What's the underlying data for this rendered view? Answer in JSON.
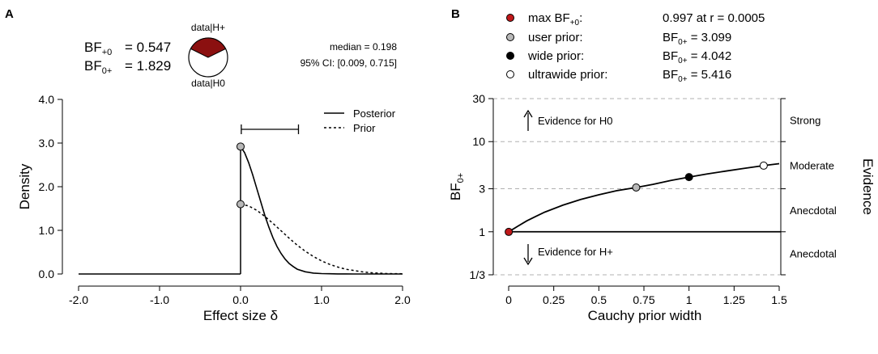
{
  "chart_data": [
    {
      "type": "line",
      "panel_label": "A",
      "xlabel": "Effect size δ",
      "ylabel": "Density",
      "xlim": [
        -2.0,
        2.0
      ],
      "ylim": [
        0.0,
        4.0
      ],
      "x_ticks": [
        "-2.0",
        "-1.0",
        "0.0",
        "1.0",
        "2.0"
      ],
      "y_ticks": [
        "0.0",
        "1.0",
        "2.0",
        "3.0",
        "4.0"
      ],
      "legend": [
        "Posterior",
        "Prior"
      ],
      "bf": {
        "bf_plus0_value": "= 0.547",
        "bf_0plus_value": "= 1.829"
      },
      "pie": {
        "top_label": "data|H+",
        "bottom_label": "data|H0",
        "h_plus_share": 0.354,
        "h_plus_color": "#8b1010"
      },
      "stats": {
        "median": "median = 0.198",
        "ci": "95% CI: [0.009, 0.715]"
      },
      "ci_interval": [
        0.009,
        0.715
      ],
      "points": {
        "posterior_at_zero": 2.92,
        "prior_at_zero": 1.6
      },
      "series": [
        {
          "name": "Posterior",
          "style": "solid",
          "x": [
            0,
            0.05,
            0.1,
            0.15,
            0.2,
            0.25,
            0.3,
            0.35,
            0.4,
            0.45,
            0.5,
            0.55,
            0.6,
            0.65,
            0.7,
            0.8,
            0.9,
            1.0,
            1.1,
            1.2,
            1.3,
            1.4,
            1.5,
            1.6,
            1.8,
            2.0
          ],
          "y": [
            2.92,
            2.78,
            2.55,
            2.27,
            1.96,
            1.65,
            1.34,
            1.07,
            0.83,
            0.63,
            0.47,
            0.34,
            0.24,
            0.17,
            0.11,
            0.05,
            0.02,
            0.01,
            0.005,
            0.002,
            0.001,
            0,
            0,
            0,
            0,
            0
          ]
        },
        {
          "name": "Prior",
          "style": "dotted",
          "x": [
            0,
            0.1,
            0.2,
            0.3,
            0.4,
            0.5,
            0.6,
            0.7,
            0.8,
            0.9,
            1.0,
            1.1,
            1.2,
            1.3,
            1.4,
            1.5,
            1.6,
            1.7,
            1.8,
            2.0
          ],
          "y": [
            1.6,
            1.56,
            1.46,
            1.32,
            1.16,
            0.99,
            0.82,
            0.66,
            0.52,
            0.4,
            0.3,
            0.22,
            0.16,
            0.11,
            0.08,
            0.05,
            0.03,
            0.02,
            0.01,
            0.005
          ]
        }
      ]
    },
    {
      "type": "line",
      "panel_label": "B",
      "xlabel": "Cauchy prior width",
      "ylabel_main": "BF",
      "ylabel_sub": "0+",
      "right_label": "Evidence",
      "xlim": [
        0,
        1.5
      ],
      "y_scale": "log",
      "ylim": [
        0.3333,
        30
      ],
      "x_ticks": [
        {
          "v": 0,
          "t": "0"
        },
        {
          "v": 0.25,
          "t": "0.25"
        },
        {
          "v": 0.5,
          "t": "0.5"
        },
        {
          "v": 0.75,
          "t": "0.75"
        },
        {
          "v": 1.0,
          "t": "1"
        },
        {
          "v": 1.25,
          "t": "1.25"
        },
        {
          "v": 1.5,
          "t": "1.5"
        }
      ],
      "y_ticks": [
        {
          "v": 0.3333,
          "t": "1/3"
        },
        {
          "v": 1,
          "t": "1"
        },
        {
          "v": 3,
          "t": "3"
        },
        {
          "v": 10,
          "t": "10"
        },
        {
          "v": 30,
          "t": "30"
        }
      ],
      "grid_lines": [
        0.3333,
        3,
        10,
        30
      ],
      "evidence_labels": [
        {
          "v": 17.3,
          "t": "Strong"
        },
        {
          "v": 5.48,
          "t": "Moderate"
        },
        {
          "v": 1.73,
          "t": "Anecdotal"
        },
        {
          "v": 0.577,
          "t": "Anecdotal"
        }
      ],
      "arrows": {
        "up_text": "Evidence for H0",
        "down_text": "Evidence for H+"
      },
      "legend": [
        {
          "name": "max BF",
          "sub": "+0",
          "suffix": ":",
          "value": "0.997 at r = 0.0005",
          "color": "#c0181a"
        },
        {
          "name": "user prior:",
          "value": "BF",
          "value_sub": "0+",
          "value_rest": " = 3.099",
          "color": "#b8b8b8"
        },
        {
          "name": "wide prior:",
          "value": "BF",
          "value_sub": "0+",
          "value_rest": " = 4.042",
          "color": "#000000"
        },
        {
          "name": "ultrawide prior:",
          "value": "BF",
          "value_sub": "0+",
          "value_rest": " = 5.416",
          "color": "#ffffff"
        }
      ],
      "curve": {
        "x": [
          0,
          0.05,
          0.1,
          0.15,
          0.2,
          0.3,
          0.4,
          0.5,
          0.6,
          0.707,
          0.8,
          0.9,
          1.0,
          1.1,
          1.2,
          1.3,
          1.414,
          1.5
        ],
        "y": [
          1.0,
          1.15,
          1.32,
          1.48,
          1.65,
          1.97,
          2.28,
          2.57,
          2.86,
          3.099,
          3.36,
          3.71,
          4.042,
          4.37,
          4.7,
          5.03,
          5.416,
          5.7
        ]
      },
      "points": [
        {
          "x": 0.0005,
          "y": 0.997,
          "color": "#c0181a"
        },
        {
          "x": 0.707,
          "y": 3.099,
          "color": "#b8b8b8"
        },
        {
          "x": 1.0,
          "y": 4.042,
          "color": "#000000"
        },
        {
          "x": 1.414,
          "y": 5.416,
          "color": "#ffffff"
        }
      ],
      "h0_line": 1
    }
  ]
}
